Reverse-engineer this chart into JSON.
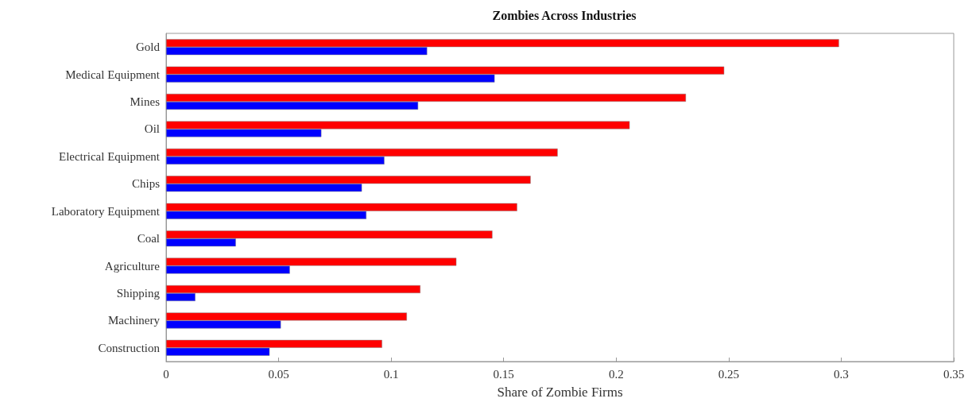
{
  "chart_data": {
    "type": "bar",
    "orientation": "horizontal",
    "title": "Zombies Across Industries",
    "xlabel": "Share of Zombie Firms",
    "categories": [
      "Gold",
      "Medical Equipment",
      "Mines",
      "Oil",
      "Electrical Equipment",
      "Chips",
      "Laboratory Equipment",
      "Coal",
      "Agriculture",
      "Shipping",
      "Machinery",
      "Construction"
    ],
    "series": [
      {
        "color": "#ff0000",
        "values": [
          0.299,
          0.248,
          0.231,
          0.206,
          0.174,
          0.162,
          0.156,
          0.145,
          0.129,
          0.113,
          0.107,
          0.096
        ]
      },
      {
        "color": "#0000ff",
        "values": [
          0.116,
          0.146,
          0.112,
          0.069,
          0.097,
          0.087,
          0.089,
          0.031,
          0.055,
          0.013,
          0.051,
          0.046
        ]
      }
    ],
    "xlim": [
      0,
      0.35
    ],
    "xticks": [
      0,
      0.05,
      0.1,
      0.15,
      0.2,
      0.25,
      0.3,
      0.35
    ],
    "grid": false
  }
}
